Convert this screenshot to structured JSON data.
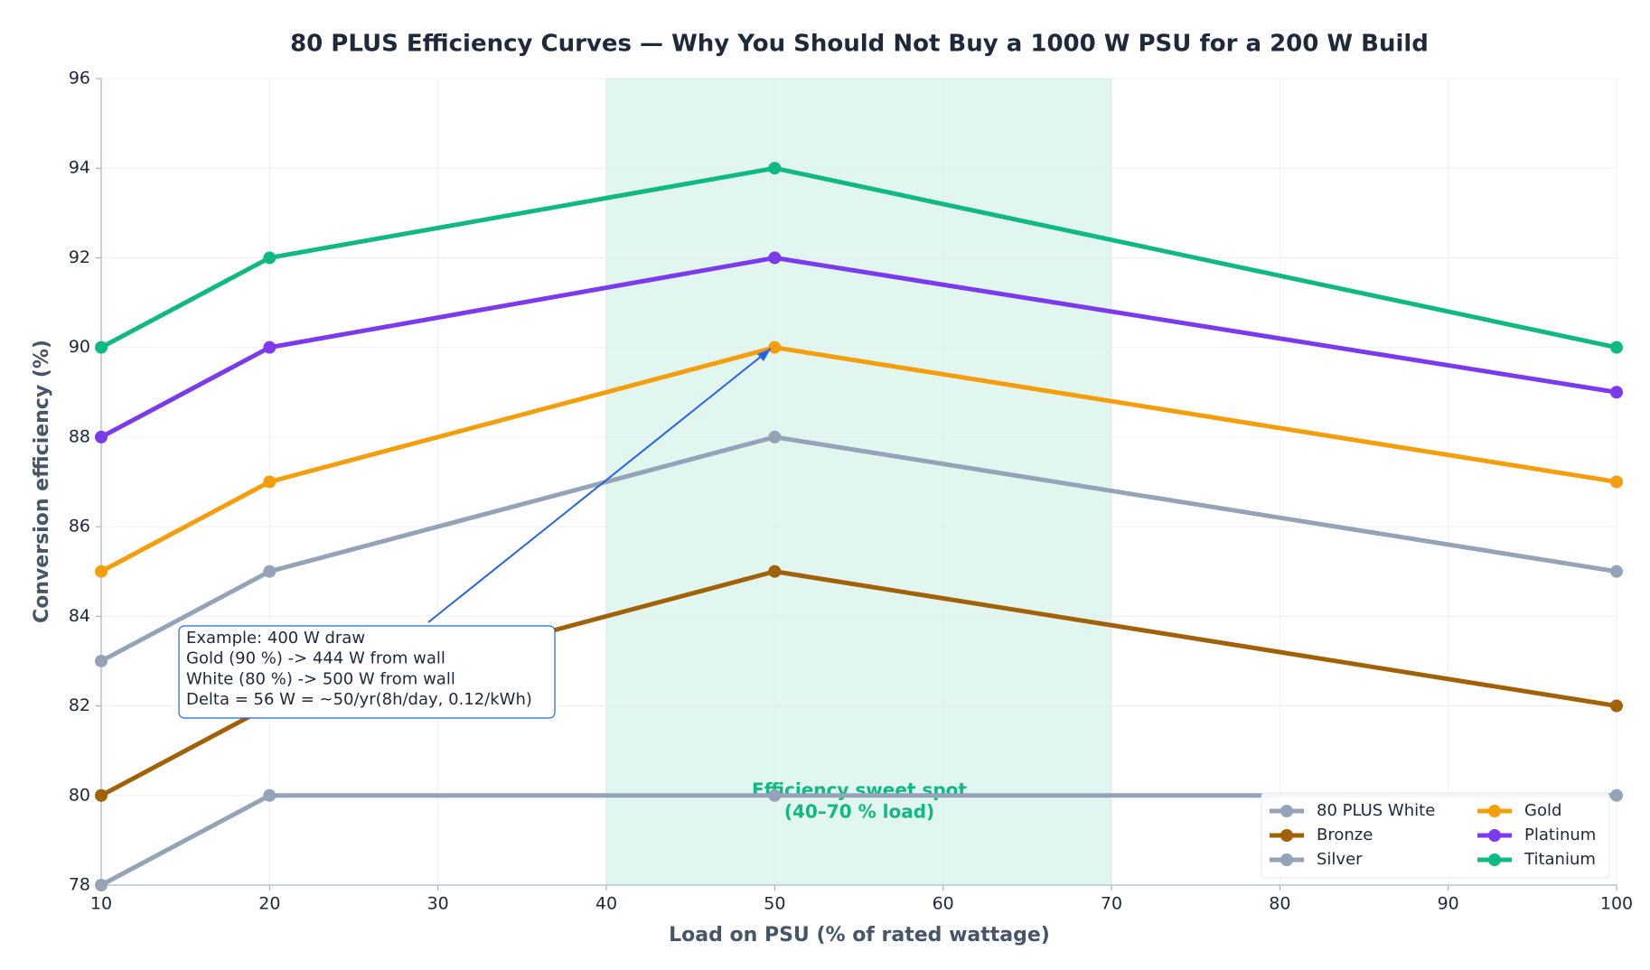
{
  "chart_data": {
    "type": "line",
    "title": "80 PLUS Efficiency Curves — Why You Should Not Buy a 1000 W PSU for a 200 W Build",
    "x_label": "Load on PSU  (% of rated wattage)",
    "y_label": "Conversion efficiency  (%)",
    "x": [
      10,
      20,
      50,
      100
    ],
    "series": [
      {
        "name": "80 PLUS White",
        "color": "#94a3b8",
        "values": [
          78,
          80,
          80,
          80
        ]
      },
      {
        "name": "Bronze",
        "color": "#a16207",
        "values": [
          80,
          82,
          85,
          82
        ]
      },
      {
        "name": "Silver",
        "color": "#94a3b8",
        "values": [
          83,
          85,
          88,
          85
        ]
      },
      {
        "name": "Gold",
        "color": "#f59e0b",
        "values": [
          85,
          87,
          90,
          87
        ]
      },
      {
        "name": "Platinum",
        "color": "#7c3aed",
        "values": [
          88,
          90,
          92,
          89
        ]
      },
      {
        "name": "Titanium",
        "color": "#10b981",
        "values": [
          90,
          92,
          94,
          90
        ]
      }
    ],
    "xlim": [
      10,
      100
    ],
    "xticks": [
      10,
      20,
      30,
      40,
      50,
      60,
      70,
      80,
      90,
      100
    ],
    "ylim": [
      78,
      96
    ],
    "yticks": [
      78,
      80,
      82,
      84,
      86,
      88,
      90,
      92,
      94,
      96
    ],
    "grid": true,
    "legend": "lower right",
    "highlight_range": [
      40,
      70
    ],
    "highlight_color": "#10b981",
    "highlight_label": [
      "Efficiency sweet spot",
      "(40–70 % load)"
    ],
    "annotation": [
      "Example: 400 W draw",
      "Gold (90 %) -> 444 W from wall",
      "White (80 %) -> 500 W from wall",
      "Delta = 56 W = ~50/yr(8h/day, 0.12/kWh)"
    ]
  }
}
